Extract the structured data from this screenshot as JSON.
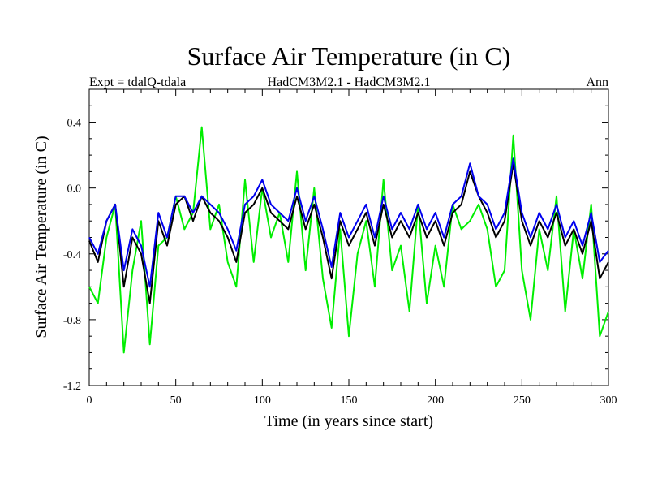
{
  "chart_data": {
    "type": "line",
    "title": "Surface Air Temperature (in C)",
    "subtitle_left": "Expt = tdalQ-tdala",
    "subtitle_center": "HadCM3M2.1 - HadCM3M2.1",
    "subtitle_right": "Ann",
    "xlabel": "Time (in years since start)",
    "ylabel": "Surface Air Temperature (in C)",
    "xlim": [
      0,
      300
    ],
    "ylim": [
      -1.2,
      0.6
    ],
    "xticks": [
      0,
      50,
      100,
      150,
      200,
      250,
      300
    ],
    "xtick_labels": [
      "0",
      "50",
      "100",
      "150",
      "200",
      "250",
      "300"
    ],
    "yticks": [
      -1.2,
      -0.8,
      -0.4,
      0.0,
      0.4
    ],
    "ytick_labels": [
      "-1.2",
      "-0.8",
      "-0.4",
      "0.0",
      "0.4"
    ],
    "grid": false,
    "series": [
      {
        "name": "black",
        "color": "#000000",
        "x": [
          0,
          5,
          10,
          15,
          20,
          25,
          30,
          35,
          40,
          45,
          50,
          55,
          60,
          65,
          70,
          75,
          80,
          85,
          90,
          95,
          100,
          105,
          110,
          115,
          120,
          125,
          130,
          135,
          140,
          145,
          150,
          155,
          160,
          165,
          170,
          175,
          180,
          185,
          190,
          195,
          200,
          205,
          210,
          215,
          220,
          225,
          230,
          235,
          240,
          245,
          250,
          255,
          260,
          265,
          270,
          275,
          280,
          285,
          290,
          295,
          300
        ],
        "y": [
          -0.32,
          -0.45,
          -0.2,
          -0.1,
          -0.6,
          -0.3,
          -0.4,
          -0.7,
          -0.2,
          -0.35,
          -0.1,
          -0.05,
          -0.2,
          -0.05,
          -0.15,
          -0.2,
          -0.3,
          -0.45,
          -0.15,
          -0.1,
          0.0,
          -0.15,
          -0.2,
          -0.25,
          -0.05,
          -0.25,
          -0.1,
          -0.3,
          -0.55,
          -0.2,
          -0.35,
          -0.25,
          -0.15,
          -0.35,
          -0.1,
          -0.3,
          -0.2,
          -0.3,
          -0.15,
          -0.3,
          -0.2,
          -0.35,
          -0.15,
          -0.1,
          0.1,
          -0.05,
          -0.15,
          -0.3,
          -0.2,
          0.15,
          -0.2,
          -0.35,
          -0.2,
          -0.3,
          -0.15,
          -0.35,
          -0.25,
          -0.4,
          -0.2,
          -0.55,
          -0.45
        ]
      },
      {
        "name": "green",
        "color": "#00ee00",
        "x": [
          0,
          5,
          10,
          15,
          20,
          25,
          30,
          35,
          40,
          45,
          50,
          55,
          60,
          65,
          70,
          75,
          80,
          85,
          90,
          95,
          100,
          105,
          110,
          115,
          120,
          125,
          130,
          135,
          140,
          145,
          150,
          155,
          160,
          165,
          170,
          175,
          180,
          185,
          190,
          195,
          200,
          205,
          210,
          215,
          220,
          225,
          230,
          235,
          240,
          245,
          250,
          255,
          260,
          265,
          270,
          275,
          280,
          285,
          290,
          295,
          300
        ],
        "y": [
          -0.6,
          -0.7,
          -0.3,
          -0.1,
          -1.0,
          -0.5,
          -0.2,
          -0.95,
          -0.35,
          -0.3,
          -0.05,
          -0.25,
          -0.15,
          0.37,
          -0.25,
          -0.1,
          -0.45,
          -0.6,
          0.05,
          -0.45,
          0.0,
          -0.3,
          -0.15,
          -0.45,
          0.1,
          -0.5,
          0.0,
          -0.55,
          -0.85,
          -0.25,
          -0.9,
          -0.4,
          -0.2,
          -0.6,
          0.05,
          -0.5,
          -0.35,
          -0.75,
          -0.1,
          -0.7,
          -0.35,
          -0.6,
          -0.1,
          -0.25,
          -0.2,
          -0.1,
          -0.25,
          -0.6,
          -0.5,
          0.32,
          -0.5,
          -0.8,
          -0.25,
          -0.5,
          -0.05,
          -0.75,
          -0.25,
          -0.55,
          -0.1,
          -0.9,
          -0.75
        ]
      },
      {
        "name": "blue",
        "color": "#0000ee",
        "x": [
          0,
          5,
          10,
          15,
          20,
          25,
          30,
          35,
          40,
          45,
          50,
          55,
          60,
          65,
          70,
          75,
          80,
          85,
          90,
          95,
          100,
          105,
          110,
          115,
          120,
          125,
          130,
          135,
          140,
          145,
          150,
          155,
          160,
          165,
          170,
          175,
          180,
          185,
          190,
          195,
          200,
          205,
          210,
          215,
          220,
          225,
          230,
          235,
          240,
          245,
          250,
          255,
          260,
          265,
          270,
          275,
          280,
          285,
          290,
          295,
          300
        ],
        "y": [
          -0.3,
          -0.4,
          -0.2,
          -0.1,
          -0.5,
          -0.25,
          -0.35,
          -0.6,
          -0.15,
          -0.3,
          -0.05,
          -0.05,
          -0.15,
          -0.05,
          -0.1,
          -0.15,
          -0.25,
          -0.38,
          -0.1,
          -0.05,
          0.05,
          -0.1,
          -0.15,
          -0.2,
          0.0,
          -0.2,
          -0.05,
          -0.25,
          -0.48,
          -0.15,
          -0.3,
          -0.2,
          -0.1,
          -0.3,
          -0.05,
          -0.25,
          -0.15,
          -0.25,
          -0.1,
          -0.25,
          -0.15,
          -0.3,
          -0.1,
          -0.05,
          0.15,
          -0.05,
          -0.1,
          -0.25,
          -0.15,
          0.18,
          -0.15,
          -0.3,
          -0.15,
          -0.25,
          -0.1,
          -0.3,
          -0.2,
          -0.35,
          -0.15,
          -0.45,
          -0.38
        ]
      }
    ]
  }
}
